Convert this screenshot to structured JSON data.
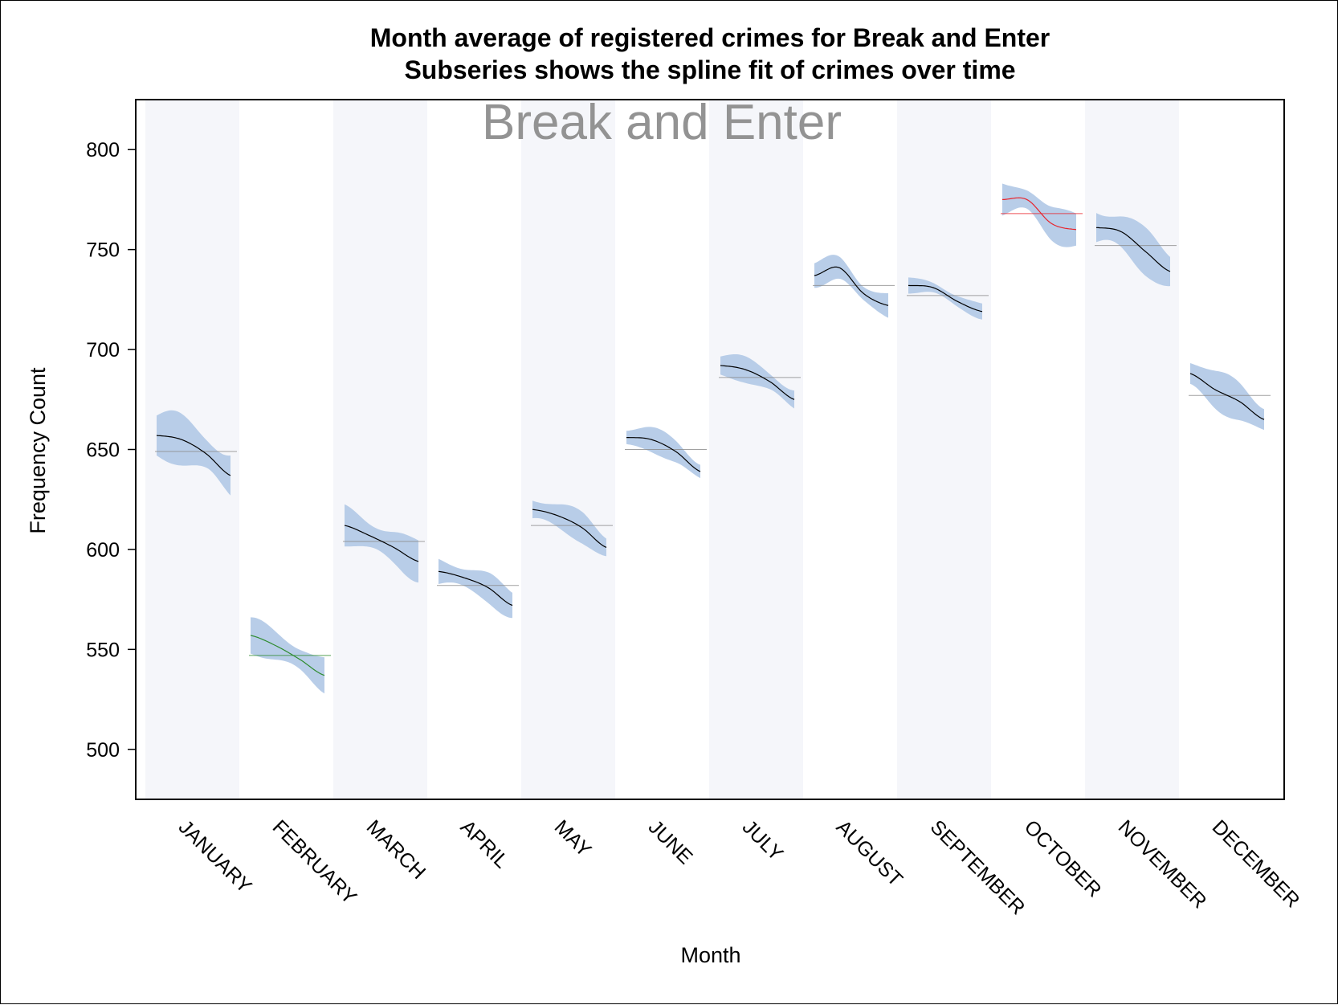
{
  "chart_data": {
    "type": "line",
    "title": "Month average of registered crimes for Break and Enter",
    "subtitle": "Subseries shows the spline fit of crimes over time",
    "inset_label": "Break and Enter",
    "xlabel": "Month",
    "ylabel": "Frequency Count",
    "ylim": [
      475,
      825
    ],
    "yticks": [
      500,
      550,
      600,
      650,
      700,
      750,
      800
    ],
    "grid": false,
    "colors": {
      "band_fill": "#b8cde8",
      "alt_column": "#f5f6fa",
      "mean_line": "#8a8a8a",
      "spline": "#000000",
      "spline_low": "#2e8b2e",
      "spline_high": "#e8242c"
    },
    "categories": [
      "JANUARY",
      "FEBRUARY",
      "MARCH",
      "APRIL",
      "MAY",
      "JUNE",
      "JULY",
      "AUGUST",
      "SEPTEMBER",
      "OCTOBER",
      "NOVEMBER",
      "DECEMBER"
    ],
    "monthly_mean": [
      649,
      547,
      604,
      582,
      612,
      650,
      686,
      732,
      727,
      768,
      752,
      677
    ],
    "spline": [
      {
        "month": "JANUARY",
        "values": [
          657,
          655,
          648,
          637
        ],
        "band_halfwidth": 10
      },
      {
        "month": "FEBRUARY",
        "values": [
          557,
          552,
          545,
          537
        ],
        "band_halfwidth": 7
      },
      {
        "month": "MARCH",
        "values": [
          612,
          607,
          601,
          594
        ],
        "band_halfwidth": 8
      },
      {
        "month": "APRIL",
        "values": [
          589,
          586,
          581,
          572
        ],
        "band_halfwidth": 6
      },
      {
        "month": "MAY",
        "values": [
          620,
          617,
          611,
          601
        ],
        "band_halfwidth": 6
      },
      {
        "month": "JUNE",
        "values": [
          656,
          655,
          649,
          639
        ],
        "band_halfwidth": 5
      },
      {
        "month": "JULY",
        "values": [
          692,
          690,
          684,
          675
        ],
        "band_halfwidth": 5
      },
      {
        "month": "AUGUST",
        "values": [
          737,
          741,
          728,
          722
        ],
        "band_halfwidth": 5
      },
      {
        "month": "SEPTEMBER",
        "values": [
          732,
          731,
          724,
          719
        ],
        "band_halfwidth": 3
      },
      {
        "month": "OCTOBER",
        "values": [
          775,
          775,
          763,
          760
        ],
        "band_halfwidth": 7
      },
      {
        "month": "NOVEMBER",
        "values": [
          761,
          759,
          749,
          739
        ],
        "band_halfwidth": 9
      },
      {
        "month": "DECEMBER",
        "values": [
          688,
          680,
          674,
          665
        ],
        "band_halfwidth": 8
      }
    ],
    "highlight": {
      "lowest": "FEBRUARY",
      "highest": "OCTOBER"
    }
  }
}
